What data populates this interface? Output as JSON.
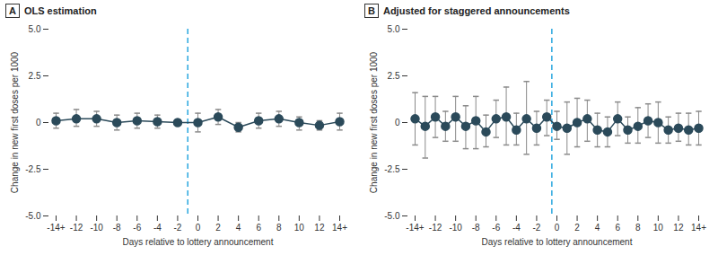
{
  "chart_data": [
    {
      "type": "line",
      "panel_label": "A",
      "title": "OLS estimation",
      "x_label": "Days relative to lottery announcement",
      "y_label": "Change in new first doses per 1000",
      "color": "#2b4a5a",
      "marker": "circle",
      "line_style": "solid",
      "grid": false,
      "reference_x": -1,
      "x": [
        -14,
        -12,
        -10,
        -8,
        -6,
        -4,
        -2,
        0,
        2,
        4,
        6,
        8,
        10,
        12,
        14
      ],
      "values": [
        0.1,
        0.2,
        0.2,
        0.0,
        0.1,
        0.05,
        0,
        0.0,
        0.3,
        -0.25,
        0.1,
        0.2,
        0.0,
        -0.15,
        0.05
      ],
      "lower": [
        -0.3,
        -0.2,
        -0.2,
        -0.4,
        -0.3,
        -0.3,
        null,
        -0.5,
        -0.1,
        -0.5,
        -0.3,
        -0.2,
        -0.4,
        -0.4,
        -0.4
      ],
      "upper": [
        0.5,
        0.7,
        0.6,
        0.4,
        0.5,
        0.4,
        null,
        0.5,
        0.7,
        0.0,
        0.5,
        0.6,
        0.3,
        0.1,
        0.5
      ],
      "xlim": [
        -14,
        14
      ],
      "xticks": [
        {
          "value": -14,
          "label": "-14+"
        },
        -12,
        -10,
        -8,
        -6,
        -4,
        -2,
        0,
        2,
        4,
        6,
        8,
        10,
        12,
        {
          "value": 14,
          "label": "14+"
        }
      ],
      "ylim": [
        -5,
        5
      ],
      "yticks": [
        {
          "value": -5,
          "label": "-5.0"
        },
        {
          "value": -2.5,
          "label": "-2.5"
        },
        0,
        {
          "value": 2.5,
          "label": "2.5"
        },
        {
          "value": 5,
          "label": "5.0"
        }
      ]
    },
    {
      "type": "line",
      "panel_label": "B",
      "title": "Adjusted for staggered announcements",
      "x_label": "Days relative to lottery announcement",
      "y_label": "Change in new first doses per 1000",
      "color": "#2b4a5a",
      "marker": "circle",
      "line_style": "solid",
      "grid": false,
      "reference_x": -0.5,
      "x": [
        -14,
        -13,
        -12,
        -11,
        -10,
        -9,
        -8,
        -7,
        -6,
        -5,
        -4,
        -3,
        -2,
        -1,
        0,
        1,
        2,
        3,
        4,
        5,
        6,
        7,
        8,
        9,
        10,
        11,
        12,
        13,
        14
      ],
      "values": [
        0.2,
        -0.2,
        0.3,
        -0.2,
        0.3,
        -0.2,
        0.1,
        -0.5,
        0.2,
        0.3,
        -0.4,
        0.2,
        -0.3,
        0.3,
        -0.2,
        -0.3,
        0.0,
        0.2,
        -0.4,
        -0.5,
        0.2,
        -0.4,
        -0.2,
        0.1,
        0.0,
        -0.4,
        -0.3,
        -0.4,
        -0.3
      ],
      "lower": [
        -1.2,
        -1.9,
        -0.8,
        -1.0,
        -1.0,
        -1.4,
        -1.4,
        -1.3,
        -0.8,
        -1.2,
        -1.2,
        -1.7,
        -1.2,
        -0.7,
        -0.9,
        -1.7,
        -1.3,
        -1.0,
        -1.3,
        -1.3,
        -0.7,
        -1.1,
        -1.1,
        -0.8,
        -1.1,
        -1.1,
        -1.0,
        -1.2,
        -1.2
      ],
      "upper": [
        1.6,
        1.4,
        1.4,
        0.6,
        1.4,
        0.9,
        1.4,
        0.4,
        1.2,
        1.9,
        0.5,
        2.2,
        0.6,
        1.2,
        0.6,
        1.1,
        1.3,
        1.2,
        0.5,
        0.3,
        1.1,
        0.3,
        0.8,
        1.0,
        1.1,
        0.3,
        0.5,
        0.5,
        0.6
      ],
      "xlim": [
        -14,
        14
      ],
      "xticks": [
        {
          "value": -14,
          "label": "-14+"
        },
        -12,
        -10,
        -8,
        -6,
        -4,
        -2,
        0,
        2,
        4,
        6,
        8,
        10,
        12,
        {
          "value": 14,
          "label": "14+"
        }
      ],
      "ylim": [
        -5,
        5
      ],
      "yticks": [
        {
          "value": -5,
          "label": "-5.0"
        },
        {
          "value": -2.5,
          "label": "-2.5"
        },
        0,
        {
          "value": 2.5,
          "label": "2.5"
        },
        {
          "value": 5,
          "label": "5.0"
        }
      ]
    }
  ]
}
